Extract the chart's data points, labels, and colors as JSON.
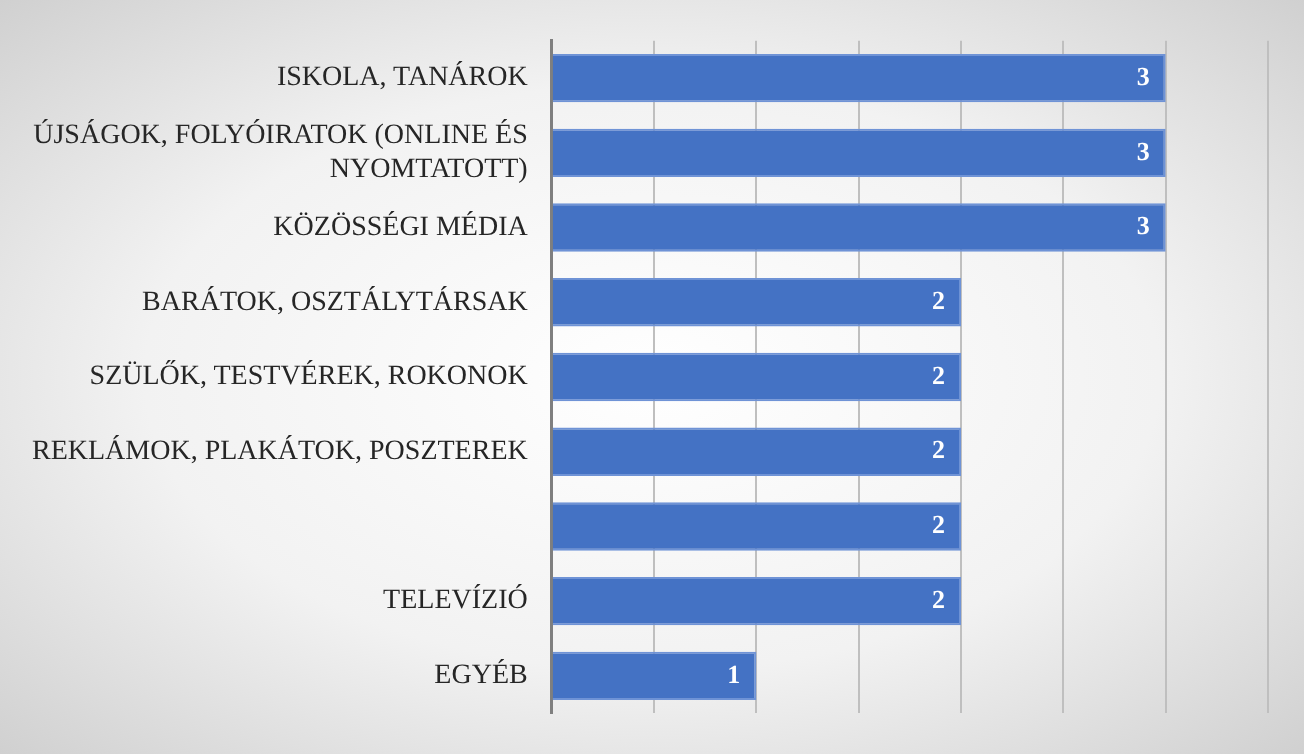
{
  "chart_data": {
    "type": "bar",
    "orientation": "horizontal",
    "categories": [
      "ISKOLA, TANÁROK",
      "ÚJSÁGOK, FOLYÓIRATOK (ONLINE ÉS NYOMTATOTT)",
      "KÖZÖSSÉGI MÉDIA",
      "BARÁTOK, OSZTÁLYTÁRSAK",
      "SZÜLŐK, TESTVÉREK, ROKONOK",
      "REKLÁMOK, PLAKÁTOK, POSZTEREK",
      null,
      "TELEVÍZIÓ",
      "EGYÉB"
    ],
    "values": [
      3,
      3,
      3,
      2,
      2,
      2,
      2,
      2,
      1
    ],
    "color": "#4472c4",
    "xlim": [
      0,
      3.5
    ],
    "xticks": [
      {
        "value": 0,
        "label": null
      },
      {
        "value": 0.5,
        "label": null
      },
      {
        "value": 1,
        "label": null
      },
      {
        "value": 1.5,
        "label": null
      },
      {
        "value": 2,
        "label": null
      },
      {
        "value": 2.5,
        "label": null
      },
      {
        "value": 3,
        "label": null
      },
      {
        "value": 3.5,
        "label": null
      }
    ],
    "grid": "x",
    "tick_labels": "y",
    "data_labels": true
  }
}
